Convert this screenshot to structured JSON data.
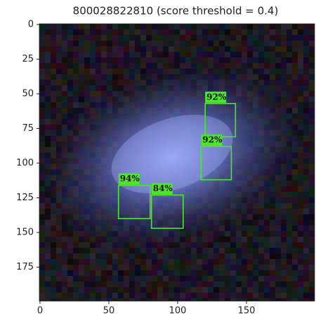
{
  "chart_data": {
    "type": "detection",
    "title": "800028822810 (score threshold = 0.4)",
    "xlim": [
      -0.5,
      199.5
    ],
    "ylim": [
      199.5,
      -0.5
    ],
    "xticks": [
      0,
      50,
      100,
      150
    ],
    "yticks": [
      0,
      25,
      50,
      75,
      100,
      125,
      150,
      175
    ],
    "color": "#4ce62a",
    "boxes": [
      {
        "x0": 120,
        "y0": 57,
        "x1": 142,
        "y1": 81,
        "score": 92,
        "label": "92%"
      },
      {
        "x0": 117,
        "y0": 88,
        "x1": 139,
        "y1": 112,
        "score": 92,
        "label": "92%"
      },
      {
        "x0": 57,
        "y0": 116,
        "x1": 80,
        "y1": 140,
        "score": 94,
        "label": "94%"
      },
      {
        "x0": 81,
        "y0": 123,
        "x1": 104,
        "y1": 147,
        "score": 84,
        "label": "84%"
      }
    ]
  }
}
